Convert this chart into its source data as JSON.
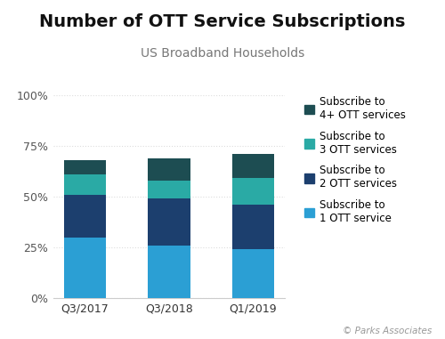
{
  "title": "Number of OTT Service Subscriptions",
  "subtitle": "US Broadband Households",
  "categories": [
    "Q3/2017",
    "Q3/2018",
    "Q1/2019"
  ],
  "series": [
    {
      "label": "Subscribe to\n1 OTT service",
      "values": [
        30,
        26,
        24
      ],
      "color": "#2B9FD4"
    },
    {
      "label": "Subscribe to\n2 OTT services",
      "values": [
        21,
        23,
        22
      ],
      "color": "#1C3F6E"
    },
    {
      "label": "Subscribe to\n3 OTT services",
      "values": [
        10,
        9,
        13
      ],
      "color": "#2AAAA5"
    },
    {
      "label": "Subscribe to\n4+ OTT services",
      "values": [
        7,
        11,
        12
      ],
      "color": "#1D4D52"
    }
  ],
  "ylim": [
    0,
    100
  ],
  "yticks": [
    0,
    25,
    50,
    75,
    100
  ],
  "ytick_labels": [
    "0%",
    "25%",
    "50%",
    "75%",
    "100%"
  ],
  "bar_width": 0.5,
  "background_color": "#ffffff",
  "title_fontsize": 14,
  "subtitle_fontsize": 10,
  "tick_fontsize": 9,
  "legend_fontsize": 8.5,
  "watermark": "© Parks Associates",
  "spine_color": "#cccccc",
  "grid_color": "#dddddd"
}
